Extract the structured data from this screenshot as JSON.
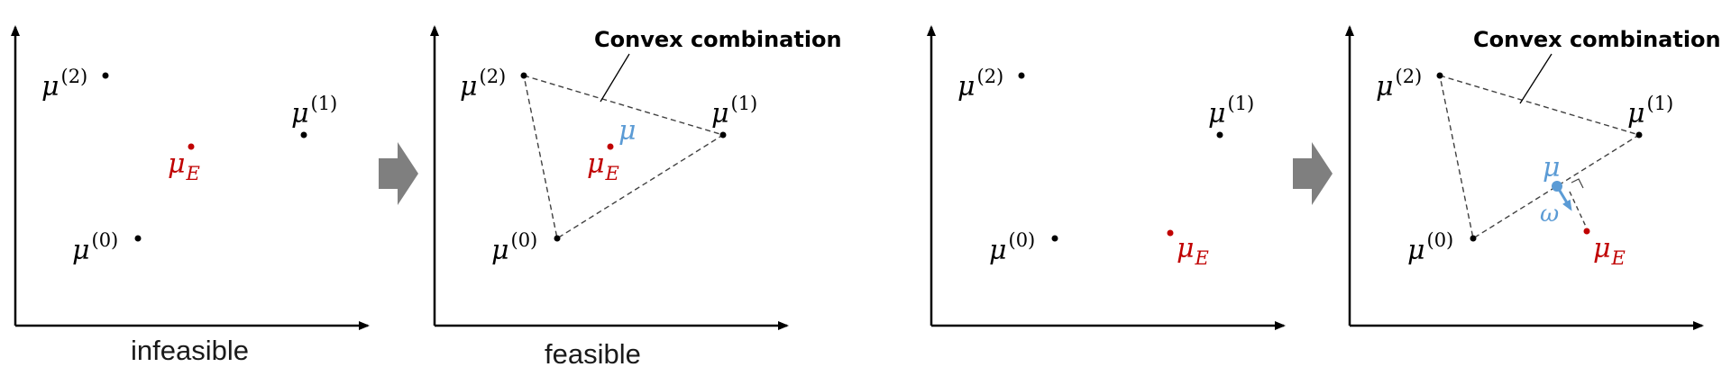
{
  "captions": {
    "infeasible": "infeasible",
    "feasible": "feasible"
  },
  "labels": {
    "convex_combination": "Convex combination",
    "mu": "μ",
    "omega": "ω",
    "sup_0": "(0)",
    "sup_1": "(1)",
    "sup_2": "(2)",
    "sub_E": "E"
  },
  "colors": {
    "axis": "#000000",
    "point": "#000000",
    "expert": "#c00000",
    "projection": "#5b9bd5",
    "arrow": "#7f7f7f",
    "edge": "#404040"
  }
}
